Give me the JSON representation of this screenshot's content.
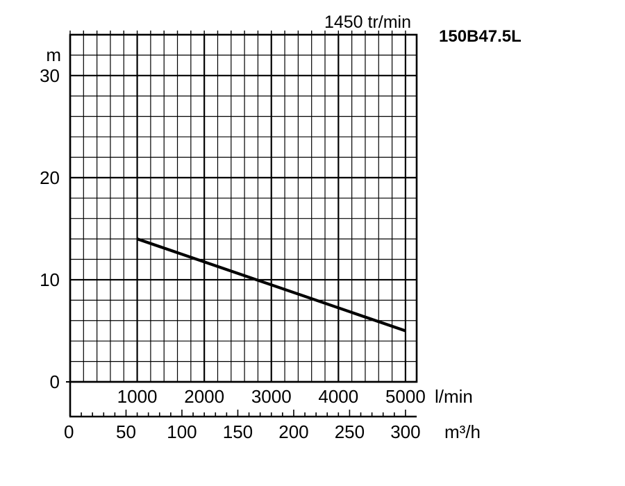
{
  "chart_data": {
    "type": "line",
    "model": "150B47.5L",
    "speed_label": "1450 tr/min",
    "ylabel": "m",
    "y_ticks": [
      "0",
      "10",
      "20",
      "30"
    ],
    "ylim": [
      0,
      34
    ],
    "x_lmin_ticks": [
      "1000",
      "2000",
      "3000",
      "4000",
      "5000"
    ],
    "x_lmin_unit": "l/min",
    "x_m3h_ticks": [
      "0",
      "50",
      "100",
      "150",
      "200",
      "250",
      "300"
    ],
    "x_m3h_unit": "m³/h",
    "xlim_m3h": [
      0,
      310
    ],
    "grid": true,
    "series": [
      {
        "x": [
          60,
          300
        ],
        "y": [
          14,
          5
        ]
      }
    ],
    "colors": {
      "line": "#000000",
      "grid": "#000000"
    }
  }
}
